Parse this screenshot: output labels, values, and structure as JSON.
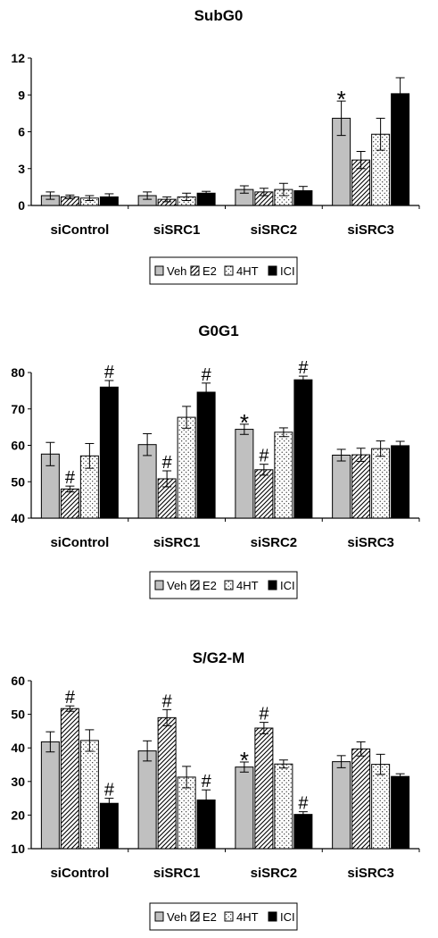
{
  "chart_data": [
    {
      "type": "bar",
      "title": "SubG0",
      "categories": [
        "siControl",
        "siSRC1",
        "siSRC2",
        "siSRC3"
      ],
      "ylim": [
        0,
        12
      ],
      "yticks": [
        0,
        3,
        6,
        9,
        12
      ],
      "series": [
        {
          "name": "Veh",
          "values": [
            0.8,
            0.8,
            1.3,
            7.1
          ],
          "errors": [
            0.3,
            0.3,
            0.3,
            1.4
          ],
          "markers": [
            "",
            "",
            "",
            "*"
          ]
        },
        {
          "name": "E2",
          "values": [
            0.7,
            0.5,
            1.1,
            3.7
          ],
          "errors": [
            0.15,
            0.2,
            0.3,
            0.7
          ],
          "markers": [
            "",
            "",
            "",
            ""
          ]
        },
        {
          "name": "4HT",
          "values": [
            0.6,
            0.7,
            1.3,
            5.8
          ],
          "errors": [
            0.2,
            0.3,
            0.5,
            1.3
          ],
          "markers": [
            "",
            "",
            "",
            ""
          ]
        },
        {
          "name": "ICI",
          "values": [
            0.7,
            1.0,
            1.2,
            9.1
          ],
          "errors": [
            0.25,
            0.15,
            0.35,
            1.3
          ],
          "markers": [
            "",
            "",
            "",
            ""
          ]
        }
      ],
      "legend": [
        "Veh",
        "E2",
        "4HT",
        "ICI"
      ]
    },
    {
      "type": "bar",
      "title": "G0G1",
      "categories": [
        "siControl",
        "siSRC1",
        "siSRC2",
        "siSRC3"
      ],
      "ylim": [
        40,
        80
      ],
      "yticks": [
        40,
        50,
        60,
        70,
        80
      ],
      "series": [
        {
          "name": "Veh",
          "values": [
            57.6,
            60.2,
            64.4,
            57.3
          ],
          "errors": [
            3.2,
            3.0,
            1.4,
            1.6
          ],
          "markers": [
            "",
            "",
            "*",
            ""
          ]
        },
        {
          "name": "E2",
          "values": [
            48.0,
            50.8,
            53.3,
            57.4
          ],
          "errors": [
            0.8,
            2.2,
            1.5,
            1.8
          ],
          "markers": [
            "#",
            "#",
            "#",
            ""
          ]
        },
        {
          "name": "4HT",
          "values": [
            57.1,
            67.7,
            63.6,
            59.1
          ],
          "errors": [
            3.4,
            3.0,
            1.2,
            2.1
          ],
          "markers": [
            "",
            "",
            "",
            ""
          ]
        },
        {
          "name": "ICI",
          "values": [
            76.0,
            74.6,
            78.0,
            59.9
          ],
          "errors": [
            1.8,
            2.5,
            1.0,
            1.2
          ],
          "markers": [
            "#",
            "#",
            "#",
            ""
          ]
        }
      ],
      "legend": [
        "Veh",
        "E2",
        "4HT",
        "ICI"
      ]
    },
    {
      "type": "bar",
      "title": "S/G2-M",
      "categories": [
        "siControl",
        "siSRC1",
        "siSRC2",
        "siSRC3"
      ],
      "ylim": [
        10,
        60
      ],
      "yticks": [
        10,
        20,
        30,
        40,
        50,
        60
      ],
      "series": [
        {
          "name": "Veh",
          "values": [
            41.8,
            39.1,
            34.3,
            35.9
          ],
          "errors": [
            3.0,
            3.0,
            1.5,
            1.8
          ],
          "markers": [
            "",
            "",
            "*",
            ""
          ]
        },
        {
          "name": "E2",
          "values": [
            51.7,
            49.0,
            45.9,
            39.7
          ],
          "errors": [
            0.8,
            2.4,
            1.7,
            2.1
          ],
          "markers": [
            "#",
            "#",
            "#",
            ""
          ]
        },
        {
          "name": "4HT",
          "values": [
            42.2,
            31.3,
            35.2,
            35.1
          ],
          "errors": [
            3.2,
            3.2,
            1.2,
            3.0
          ],
          "markers": [
            "",
            "",
            "",
            ""
          ]
        },
        {
          "name": "ICI",
          "values": [
            23.5,
            24.5,
            20.2,
            31.5
          ],
          "errors": [
            1.5,
            3.0,
            0.8,
            0.8
          ],
          "markers": [
            "#",
            "#",
            "#",
            ""
          ]
        }
      ],
      "legend": [
        "Veh",
        "E2",
        "4HT",
        "ICI"
      ]
    }
  ]
}
